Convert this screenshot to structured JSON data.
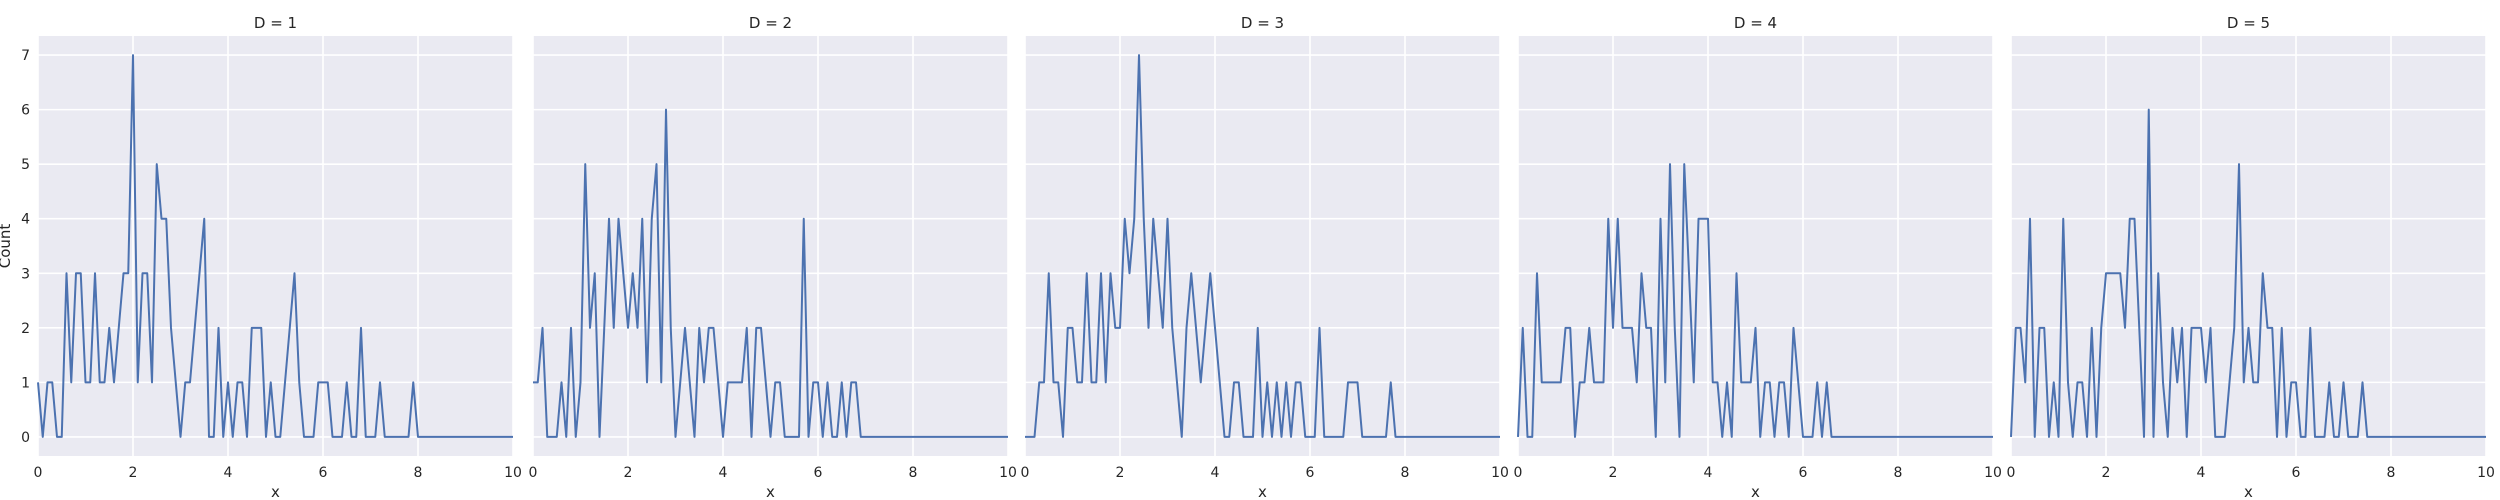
{
  "chart_data": {
    "type": "line",
    "grid": true,
    "facet_variable": "D",
    "ylabel": "Count",
    "xlabel": "x",
    "xlim": [
      0,
      10
    ],
    "ylim": [
      -0.35,
      7.35
    ],
    "xticks": [
      0,
      2,
      4,
      6,
      8,
      10
    ],
    "yticks": [
      0,
      1,
      2,
      3,
      4,
      5,
      6,
      7
    ],
    "bin_width": 0.1,
    "panels": [
      {
        "title": "D = 1",
        "xlabel": "x",
        "values": [
          1,
          0,
          1,
          1,
          0,
          0,
          3,
          1,
          3,
          3,
          1,
          1,
          3,
          1,
          1,
          2,
          1,
          2,
          3,
          3,
          7,
          1,
          3,
          3,
          1,
          5,
          4,
          4,
          2,
          1,
          0,
          1,
          1,
          2,
          3,
          4,
          0,
          0,
          2,
          0,
          1,
          0,
          1,
          1,
          0,
          2,
          2,
          2,
          0,
          1,
          0,
          0,
          1,
          2,
          3,
          1,
          0,
          0,
          0,
          1,
          1,
          1,
          0,
          0,
          0,
          1,
          0,
          0,
          2,
          0,
          0,
          0,
          1,
          0,
          0,
          0,
          0,
          0,
          0,
          1,
          0,
          0,
          0,
          0,
          0,
          0,
          0,
          0,
          0,
          0,
          0,
          0,
          0,
          0,
          0,
          0,
          0,
          0,
          0,
          0,
          0
        ]
      },
      {
        "title": "D = 2",
        "xlabel": "x",
        "values": [
          1,
          1,
          2,
          0,
          0,
          0,
          1,
          0,
          2,
          0,
          1,
          5,
          2,
          3,
          0,
          2,
          4,
          2,
          4,
          3,
          2,
          3,
          2,
          4,
          1,
          4,
          5,
          1,
          6,
          2,
          0,
          1,
          2,
          1,
          0,
          2,
          1,
          2,
          2,
          1,
          0,
          1,
          1,
          1,
          1,
          2,
          0,
          2,
          2,
          1,
          0,
          1,
          1,
          0,
          0,
          0,
          0,
          4,
          0,
          1,
          1,
          0,
          1,
          0,
          0,
          1,
          0,
          1,
          1,
          0,
          0,
          0,
          0,
          0,
          0,
          0,
          0,
          0,
          0,
          0,
          0,
          0,
          0,
          0,
          0,
          0,
          0,
          0,
          0,
          0,
          0,
          0,
          0,
          0,
          0,
          0,
          0,
          0,
          0,
          0,
          0
        ]
      },
      {
        "title": "D = 3",
        "xlabel": "x",
        "values": [
          0,
          0,
          0,
          1,
          1,
          3,
          1,
          1,
          0,
          2,
          2,
          1,
          1,
          3,
          1,
          1,
          3,
          1,
          3,
          2,
          2,
          4,
          3,
          4,
          7,
          4,
          2,
          4,
          3,
          2,
          4,
          2,
          1,
          0,
          2,
          3,
          2,
          1,
          2,
          3,
          2,
          1,
          0,
          0,
          1,
          1,
          0,
          0,
          0,
          2,
          0,
          1,
          0,
          1,
          0,
          1,
          0,
          1,
          1,
          0,
          0,
          0,
          2,
          0,
          0,
          0,
          0,
          0,
          1,
          1,
          1,
          0,
          0,
          0,
          0,
          0,
          0,
          1,
          0,
          0,
          0,
          0,
          0,
          0,
          0,
          0,
          0,
          0,
          0,
          0,
          0,
          0,
          0,
          0,
          0,
          0,
          0,
          0,
          0,
          0,
          0
        ]
      },
      {
        "title": "D = 4",
        "xlabel": "x",
        "values": [
          0,
          2,
          0,
          0,
          3,
          1,
          1,
          1,
          1,
          1,
          2,
          2,
          0,
          1,
          1,
          2,
          1,
          1,
          1,
          4,
          2,
          4,
          2,
          2,
          2,
          1,
          3,
          2,
          2,
          0,
          4,
          1,
          5,
          2,
          0,
          5,
          3,
          1,
          4,
          4,
          4,
          1,
          1,
          0,
          1,
          0,
          3,
          1,
          1,
          1,
          2,
          0,
          1,
          1,
          0,
          1,
          1,
          0,
          2,
          1,
          0,
          0,
          0,
          1,
          0,
          1,
          0,
          0,
          0,
          0,
          0,
          0,
          0,
          0,
          0,
          0,
          0,
          0,
          0,
          0,
          0,
          0,
          0,
          0,
          0,
          0,
          0,
          0,
          0,
          0,
          0,
          0,
          0,
          0,
          0,
          0,
          0,
          0,
          0,
          0,
          0
        ]
      },
      {
        "title": "D = 5",
        "xlabel": "x",
        "values": [
          0,
          2,
          2,
          1,
          4,
          0,
          2,
          2,
          0,
          1,
          0,
          4,
          1,
          0,
          1,
          1,
          0,
          2,
          0,
          2,
          3,
          3,
          3,
          3,
          2,
          4,
          4,
          2,
          0,
          6,
          0,
          3,
          1,
          0,
          2,
          1,
          2,
          0,
          2,
          2,
          2,
          1,
          2,
          0,
          0,
          0,
          1,
          2,
          5,
          1,
          2,
          1,
          1,
          3,
          2,
          2,
          0,
          2,
          0,
          1,
          1,
          0,
          0,
          2,
          0,
          0,
          0,
          1,
          0,
          0,
          1,
          0,
          0,
          0,
          1,
          0,
          0,
          0,
          0,
          0,
          0,
          0,
          0,
          0,
          0,
          0,
          0,
          0,
          0,
          0,
          0,
          0,
          0,
          0,
          0,
          0,
          0,
          0,
          0,
          0,
          0
        ]
      }
    ]
  }
}
